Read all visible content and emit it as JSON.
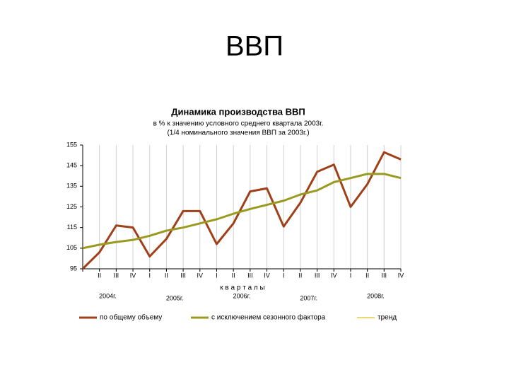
{
  "slide_title": "ВВП",
  "chart_data": {
    "type": "line",
    "title": "Динамика производства ВВП",
    "subtitle": [
      "в % к значению условного среднего квартала 2003г.",
      "(1/4 номинального значения ВВП за 2003г.)"
    ],
    "x_label": "к в а р т а л ы",
    "categories": [
      null,
      "II",
      "III",
      "IV",
      "I",
      "II",
      "III",
      "IV",
      "I",
      "II",
      "III",
      "IV",
      "I",
      "II",
      "III",
      "IV",
      "I",
      "II",
      "III",
      "IV"
    ],
    "groups": [
      {
        "label": "2004г.",
        "start": 0
      },
      {
        "label": "2005г.",
        "start": 4
      },
      {
        "label": "2006г.",
        "start": 8
      },
      {
        "label": "2007г.",
        "start": 12
      },
      {
        "label": "2008г.",
        "start": 16
      }
    ],
    "ylim": [
      95,
      155
    ],
    "yticks": [
      95,
      105,
      115,
      125,
      135,
      145,
      155
    ],
    "grid": true,
    "series": [
      {
        "name": "по общему объему",
        "color": "#a0401a",
        "values": [
          95,
          103,
          116,
          115,
          101,
          109.5,
          123,
          123,
          107,
          117,
          132.5,
          134,
          115.5,
          127,
          142,
          145.5,
          125,
          136,
          151.5,
          148
        ]
      },
      {
        "name": "с исключением сезонного фактора",
        "color": "#9a9a20",
        "values": [
          105,
          106.7,
          108,
          109,
          111,
          113.5,
          115,
          117,
          119,
          121.7,
          124,
          126,
          128,
          131,
          133,
          137,
          139,
          141,
          141,
          139
        ]
      },
      {
        "name": "тренд",
        "color": "#e8c84a",
        "values": [
          null,
          null,
          null,
          null,
          null,
          null,
          null,
          null,
          null,
          null,
          null,
          null,
          null,
          null,
          null,
          null,
          null,
          null,
          null,
          null
        ]
      }
    ]
  }
}
